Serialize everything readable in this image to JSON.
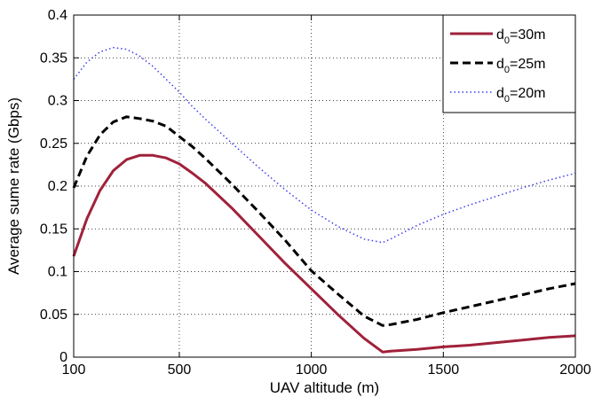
{
  "chart_data": {
    "type": "line",
    "title": "",
    "xlabel": "UAV altitude (m)",
    "ylabel": "Average sume rate (Gbps)",
    "xlim": [
      100,
      2000
    ],
    "ylim": [
      0,
      0.4
    ],
    "xticks": [
      100,
      500,
      1000,
      1500,
      2000
    ],
    "yticks": [
      0,
      0.05,
      0.1,
      0.15,
      0.2,
      0.25,
      0.3,
      0.35,
      0.4
    ],
    "xtick_labels": [
      "100",
      "500",
      "1000",
      "1500",
      "2000"
    ],
    "ytick_labels": [
      "0",
      "0.05",
      "0.1",
      "0.15",
      "0.2",
      "0.25",
      "0.3",
      "0.35",
      "0.4"
    ],
    "grid": true,
    "legend_position": "top-right",
    "series": [
      {
        "name_main": "d",
        "name_sub": "0",
        "name_suffix": "=30m",
        "color": "#a0213a",
        "style": "solid",
        "x": [
          100,
          150,
          200,
          250,
          300,
          350,
          400,
          450,
          500,
          550,
          600,
          700,
          800,
          900,
          1000,
          1100,
          1200,
          1270,
          1300,
          1350,
          1400,
          1500,
          1600,
          1700,
          1800,
          1900,
          2000
        ],
        "y": [
          0.118,
          0.162,
          0.195,
          0.218,
          0.231,
          0.236,
          0.236,
          0.233,
          0.226,
          0.215,
          0.203,
          0.174,
          0.142,
          0.11,
          0.08,
          0.05,
          0.022,
          0.006,
          0.007,
          0.008,
          0.009,
          0.012,
          0.014,
          0.017,
          0.02,
          0.023,
          0.025
        ]
      },
      {
        "name_main": "d",
        "name_sub": "0",
        "name_suffix": "=25m",
        "color": "#000000",
        "style": "dashed",
        "x": [
          100,
          150,
          200,
          250,
          300,
          350,
          400,
          450,
          500,
          550,
          600,
          700,
          800,
          900,
          1000,
          1100,
          1200,
          1270,
          1300,
          1350,
          1400,
          1500,
          1600,
          1700,
          1800,
          1900,
          2000
        ],
        "y": [
          0.198,
          0.235,
          0.26,
          0.275,
          0.281,
          0.279,
          0.276,
          0.27,
          0.258,
          0.246,
          0.232,
          0.202,
          0.17,
          0.137,
          0.101,
          0.074,
          0.048,
          0.037,
          0.038,
          0.041,
          0.044,
          0.052,
          0.059,
          0.066,
          0.073,
          0.08,
          0.086
        ]
      },
      {
        "name_main": "d",
        "name_sub": "0",
        "name_suffix": "=20m",
        "color": "#3c3cf0",
        "style": "dotted",
        "x": [
          100,
          150,
          200,
          250,
          300,
          350,
          400,
          450,
          500,
          550,
          600,
          700,
          800,
          900,
          1000,
          1100,
          1200,
          1270,
          1300,
          1350,
          1400,
          1500,
          1600,
          1700,
          1800,
          1900,
          2000
        ],
        "y": [
          0.325,
          0.345,
          0.357,
          0.362,
          0.36,
          0.352,
          0.34,
          0.325,
          0.31,
          0.293,
          0.278,
          0.25,
          0.222,
          0.196,
          0.172,
          0.153,
          0.138,
          0.134,
          0.138,
          0.146,
          0.154,
          0.167,
          0.178,
          0.188,
          0.198,
          0.207,
          0.215
        ]
      }
    ]
  }
}
